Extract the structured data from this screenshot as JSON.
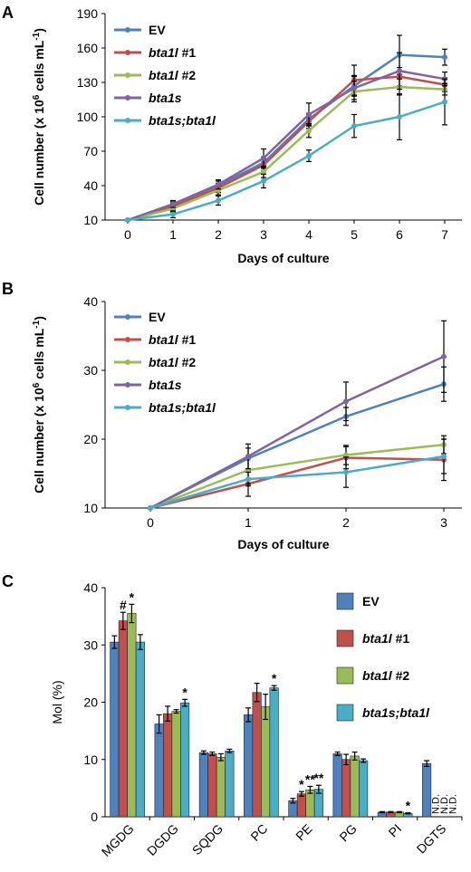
{
  "colors": {
    "EV": "#4F81BD",
    "bta1l_1": "#C0504D",
    "bta1l_2": "#9BBB59",
    "bta1s": "#8064A2",
    "bta1s_bta1l": "#4BACC6"
  },
  "chart_data": [
    {
      "id": "A",
      "panel_label": "A",
      "type": "line",
      "xlabel": "Days of culture",
      "ylabel_main": "Cell number (x 10",
      "ylabel_sup": "6",
      "ylabel_mid": " cells mL",
      "ylabel_sup2": "-1",
      "ylabel_end": ")",
      "x": [
        0,
        1,
        2,
        3,
        4,
        5,
        6,
        7
      ],
      "x_tick_labels": [
        "0",
        "1",
        "2",
        "3",
        "4",
        "5",
        "6",
        "7"
      ],
      "ylim": [
        10,
        190
      ],
      "y_ticks": [
        10,
        40,
        70,
        100,
        130,
        160,
        190
      ],
      "y_tick_labels": [
        "10",
        "40",
        "70",
        "100",
        "130",
        "160",
        "190"
      ],
      "legend_position": "top-left",
      "series": [
        {
          "key": "EV",
          "name_main": "EV",
          "name_suffix": "",
          "italic": false,
          "color_key": "EV",
          "values": [
            10,
            23,
            40,
            60,
            98,
            127,
            154,
            152
          ],
          "errors": [
            0,
            3,
            4,
            5,
            5,
            9,
            17,
            7
          ]
        },
        {
          "key": "bta1l_1",
          "name_main": "bta1l",
          "name_suffix": " #1",
          "italic": true,
          "color_key": "bta1l_1",
          "values": [
            10,
            22,
            38,
            58,
            96,
            132,
            135,
            128
          ],
          "errors": [
            0,
            3,
            4,
            5,
            6,
            13,
            8,
            6
          ]
        },
        {
          "key": "bta1l_2",
          "name_main": "bta1l",
          "name_suffix": " #2",
          "italic": true,
          "color_key": "bta1l_2",
          "values": [
            10,
            20,
            36,
            52,
            88,
            122,
            126,
            124
          ],
          "errors": [
            0,
            3,
            4,
            5,
            6,
            9,
            7,
            5
          ]
        },
        {
          "key": "bta1s",
          "name_main": "bta1s",
          "name_suffix": "",
          "italic": true,
          "color_key": "bta1s",
          "values": [
            10,
            24,
            41,
            64,
            102,
            125,
            140,
            133
          ],
          "errors": [
            0,
            3,
            4,
            8,
            10,
            10,
            16,
            6
          ]
        },
        {
          "key": "bta1s_bta1l",
          "name_main": "bta1s;bta1l",
          "name_suffix": "",
          "italic": true,
          "color_key": "bta1s_bta1l",
          "values": [
            10,
            15,
            27,
            44,
            66,
            92,
            100,
            113
          ],
          "errors": [
            0,
            3,
            4,
            6,
            5,
            10,
            20,
            20
          ]
        }
      ]
    },
    {
      "id": "B",
      "panel_label": "B",
      "type": "line",
      "xlabel": "Days of culture",
      "ylabel_main": "Cell number (x 10",
      "ylabel_sup": "6",
      "ylabel_mid": " cells mL",
      "ylabel_sup2": "-1",
      "ylabel_end": ")",
      "x": [
        0,
        1,
        2,
        3
      ],
      "x_tick_labels": [
        "0",
        "1",
        "2",
        "3"
      ],
      "ylim": [
        10,
        40
      ],
      "y_ticks": [
        10,
        20,
        30,
        40
      ],
      "y_tick_labels": [
        "10",
        "20",
        "30",
        "40"
      ],
      "legend_position": "top-left",
      "series": [
        {
          "key": "EV",
          "name_main": "EV",
          "name_suffix": "",
          "italic": false,
          "color_key": "EV",
          "values": [
            10,
            17.2,
            23.3,
            28.0
          ],
          "errors": [
            0,
            1.5,
            1.3,
            2.5
          ]
        },
        {
          "key": "bta1l_1",
          "name_main": "bta1l",
          "name_suffix": " #1",
          "italic": true,
          "color_key": "bta1l_1",
          "values": [
            10,
            13.5,
            17.3,
            17.0
          ],
          "errors": [
            0,
            1.8,
            1.6,
            3.0
          ]
        },
        {
          "key": "bta1l_2",
          "name_main": "bta1l",
          "name_suffix": " #2",
          "italic": true,
          "color_key": "bta1l_2",
          "values": [
            10,
            15.5,
            17.7,
            19.2
          ],
          "errors": [
            0,
            2.0,
            1.4,
            1.3
          ]
        },
        {
          "key": "bta1s",
          "name_main": "bta1s",
          "name_suffix": "",
          "italic": true,
          "color_key": "bta1s",
          "values": [
            10,
            17.5,
            25.5,
            32.0
          ],
          "errors": [
            0,
            1.8,
            2.8,
            5.2
          ]
        },
        {
          "key": "bta1s_bta1l",
          "name_main": "bta1s;bta1l",
          "name_suffix": "",
          "italic": true,
          "color_key": "bta1s_bta1l",
          "values": [
            10,
            14.2,
            15.2,
            17.5
          ],
          "errors": [
            0,
            1.0,
            2.2,
            2.5
          ]
        }
      ]
    },
    {
      "id": "C",
      "panel_label": "C",
      "type": "bar",
      "ylabel": "Mol  (%)",
      "categories": [
        "MGDG",
        "DGDG",
        "SQDG",
        "PC",
        "PE",
        "PG",
        "PI",
        "DGTS"
      ],
      "ylim": [
        0,
        40
      ],
      "y_ticks": [
        0,
        10,
        20,
        30,
        40
      ],
      "y_tick_labels": [
        "0",
        "10",
        "20",
        "30",
        "40"
      ],
      "legend_position": "top-right",
      "series": [
        {
          "key": "EV",
          "name_main": "EV",
          "name_suffix": "",
          "italic": false,
          "color_key": "EV",
          "values": [
            30.5,
            16.2,
            11.2,
            17.8,
            2.8,
            11.0,
            0.8,
            9.3
          ],
          "errors": [
            1.1,
            1.6,
            0.3,
            1.2,
            0.4,
            0.3,
            0.1,
            0.5
          ]
        },
        {
          "key": "bta1l_1",
          "name_main": "bta1l",
          "name_suffix": " #1",
          "italic": true,
          "color_key": "bta1l_1",
          "values": [
            34.2,
            18.0,
            11.0,
            21.7,
            4.0,
            10.0,
            0.8,
            null
          ],
          "errors": [
            1.5,
            1.3,
            0.3,
            1.6,
            0.4,
            0.9,
            0.1,
            null
          ]
        },
        {
          "key": "bta1l_2",
          "name_main": "bta1l",
          "name_suffix": " #2",
          "italic": true,
          "color_key": "bta1l_2",
          "values": [
            35.5,
            18.4,
            10.4,
            19.2,
            4.7,
            10.6,
            0.8,
            null
          ],
          "errors": [
            1.6,
            0.3,
            0.6,
            2.2,
            0.6,
            0.7,
            0.1,
            null
          ]
        },
        {
          "key": "bta1s_bta1l",
          "name_main": "bta1s;bta1l",
          "name_suffix": "",
          "italic": true,
          "color_key": "bta1s_bta1l",
          "values": [
            30.5,
            19.9,
            11.5,
            22.5,
            4.8,
            9.8,
            0.6,
            null
          ],
          "errors": [
            1.3,
            0.6,
            0.3,
            0.4,
            0.7,
            0.3,
            0.1,
            null
          ]
        }
      ],
      "annotations": [
        {
          "category": 0,
          "series": 1,
          "text": "#"
        },
        {
          "category": 0,
          "series": 2,
          "text": "*"
        },
        {
          "category": 1,
          "series": 3,
          "text": "*"
        },
        {
          "category": 3,
          "series": 3,
          "text": "*"
        },
        {
          "category": 4,
          "series": 1,
          "text": "*"
        },
        {
          "category": 4,
          "series": 2,
          "text": "**"
        },
        {
          "category": 4,
          "series": 3,
          "text": "**"
        },
        {
          "category": 6,
          "series": 3,
          "text": "*"
        }
      ],
      "nd_labels": [
        {
          "category": 7,
          "series": 1,
          "text": "N.D."
        },
        {
          "category": 7,
          "series": 2,
          "text": "N.D."
        },
        {
          "category": 7,
          "series": 3,
          "text": "N.D."
        }
      ]
    }
  ]
}
